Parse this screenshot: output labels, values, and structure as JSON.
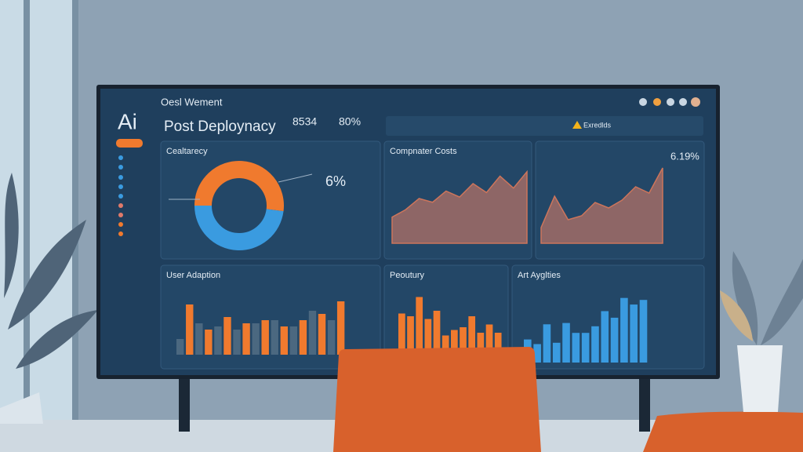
{
  "header": {
    "brand": "Ai",
    "title": "Oesl Wement",
    "subtitle": "Post Deploynacy",
    "stats": [
      "8534",
      "80%"
    ],
    "alert": "Exredlds"
  },
  "panels": [
    {
      "title": "Cealtarecy",
      "type": "pie",
      "values": [
        52,
        48
      ],
      "colors": [
        "#f07a2e",
        "#3a9be0"
      ],
      "label": "6%"
    },
    {
      "title": "Compnater Costs",
      "type": "area",
      "values": [
        35,
        45,
        60,
        55,
        70,
        62,
        80,
        68,
        90,
        74,
        96
      ],
      "ylim": [
        0,
        100
      ],
      "color": "#9a6a66"
    },
    {
      "type": "area",
      "label": "6.19%",
      "values": [
        20,
        60,
        30,
        35,
        52,
        45,
        55,
        72,
        64,
        96
      ],
      "ylim": [
        0,
        100
      ],
      "color": "#9a6a66"
    },
    {
      "title": "User Adaption",
      "type": "bar",
      "ylim": [
        0,
        100
      ],
      "series": [
        {
          "color": "#4b6880",
          "values": [
            25,
            50,
            45,
            40,
            50,
            55,
            45,
            70,
            55
          ]
        },
        {
          "color": "#f07a2e",
          "values": [
            80,
            40,
            60,
            50,
            55,
            45,
            55,
            65,
            85
          ]
        }
      ]
    },
    {
      "title": "Peoutury",
      "type": "bar",
      "ylim": [
        0,
        100
      ],
      "series": [
        {
          "color": "#f07a2e",
          "values": [
            65,
            60,
            95,
            55,
            70,
            25,
            35,
            40,
            60,
            30,
            45,
            30
          ]
        }
      ]
    },
    {
      "title": "Art Ayglties",
      "type": "bar",
      "ylim": [
        0,
        100
      ],
      "series": [
        {
          "color": "#3a9be0",
          "values": [
            35,
            28,
            58,
            30,
            60,
            45,
            45,
            55,
            78,
            68,
            98,
            88,
            95
          ]
        }
      ]
    }
  ]
}
